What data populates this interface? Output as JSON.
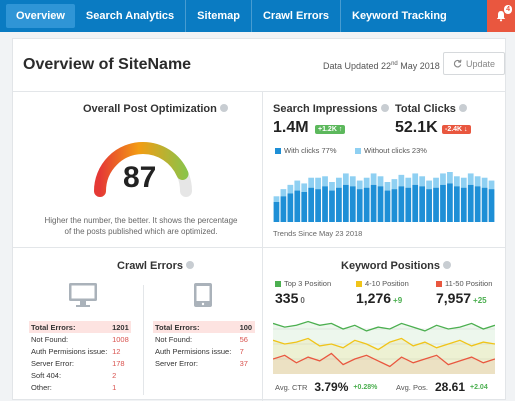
{
  "nav": {
    "tabs": [
      "Overview",
      "Search Analytics",
      "Sitemap",
      "Crawl Errors",
      "Keyword Tracking"
    ],
    "notification_count": "4"
  },
  "header": {
    "title": "Overview of SiteName",
    "updated_prefix": "Data Updated 22",
    "updated_sup": "nd",
    "updated_suffix": " May 2018",
    "update_button": "Update"
  },
  "optimization": {
    "title": "Overall Post Optimization",
    "score": "87",
    "score_fraction": 0.87,
    "description": "Higher the number, the better. It shows the percentage of the posts published which are optimized."
  },
  "impressions": {
    "title": "Search Impressions",
    "value": "1.4M",
    "delta": "+1.2K ↑",
    "clicks_title": "Total Clicks",
    "clicks_value": "52.1K",
    "clicks_delta": "-2.4K ↓",
    "legend_with": "With clicks 77%",
    "legend_without": "Without clicks 23%",
    "footer": "Trends Since May 23 2018",
    "color_with": "#1e8fd6",
    "color_without": "#8fd0f2"
  },
  "crawl": {
    "title": "Crawl Errors",
    "left": [
      [
        "Total Errors:",
        "1201"
      ],
      [
        "Not Found:",
        "1008"
      ],
      [
        "Auth Permisions issue:",
        "12"
      ],
      [
        "Server Error:",
        "178"
      ],
      [
        "Soft 404:",
        "2"
      ],
      [
        "Other:",
        "1"
      ]
    ],
    "right": [
      [
        "Total Errors:",
        "100"
      ],
      [
        "Not Found:",
        "56"
      ],
      [
        "Auth Permisions issue:",
        "7"
      ],
      [
        "Server Error:",
        "37"
      ]
    ]
  },
  "keywords": {
    "title": "Keyword Positions",
    "top3_label": "Top 3 Position",
    "top3_value": "335",
    "top3_delta": "0",
    "mid_label": "4-10 Position",
    "mid_value": "1,276",
    "mid_delta": "+9",
    "low_label": "11-50 Position",
    "low_value": "7,957",
    "low_delta": "+25",
    "ctr_label": "Avg. CTR",
    "ctr_value": "3.79%",
    "ctr_delta": "+0.28%",
    "pos_label": "Avg. Pos.",
    "pos_value": "28.61",
    "pos_delta": "+2.04",
    "colors": {
      "top3": "#4caf50",
      "mid": "#f0c419",
      "low": "#e9573f"
    }
  },
  "chart_data": [
    {
      "type": "bar",
      "stacked": true,
      "series": [
        {
          "name": "With clicks 77%",
          "values": [
            14,
            18,
            20,
            22,
            21,
            24,
            23,
            25,
            22,
            24,
            26,
            25,
            23,
            24,
            26,
            25,
            22,
            23,
            25,
            24,
            26,
            25,
            23,
            24,
            26,
            27,
            25,
            24,
            26,
            25,
            24,
            23
          ]
        },
        {
          "name": "Without clicks 23%",
          "values": [
            4,
            5,
            6,
            7,
            6,
            7,
            8,
            7,
            6,
            7,
            8,
            7,
            6,
            7,
            8,
            7,
            6,
            7,
            8,
            7,
            8,
            7,
            6,
            7,
            8,
            8,
            7,
            7,
            8,
            7,
            7,
            6
          ]
        }
      ]
    },
    {
      "type": "line",
      "series": [
        {
          "name": "Top 3 Position",
          "values": [
            5,
            7,
            6,
            4,
            6,
            5,
            8,
            6,
            9,
            7,
            8,
            5,
            7,
            9,
            6,
            8,
            7,
            5,
            8,
            6
          ]
        },
        {
          "name": "4-10 Position",
          "values": [
            14,
            16,
            15,
            13,
            17,
            16,
            18,
            14,
            16,
            19,
            15,
            13,
            17,
            15,
            18,
            16,
            14,
            17,
            15,
            16
          ]
        },
        {
          "name": "11-50 Position",
          "values": [
            24,
            22,
            26,
            23,
            25,
            21,
            27,
            24,
            22,
            25,
            28,
            23,
            26,
            24,
            22,
            27,
            25,
            23,
            26,
            24
          ]
        }
      ]
    }
  ]
}
